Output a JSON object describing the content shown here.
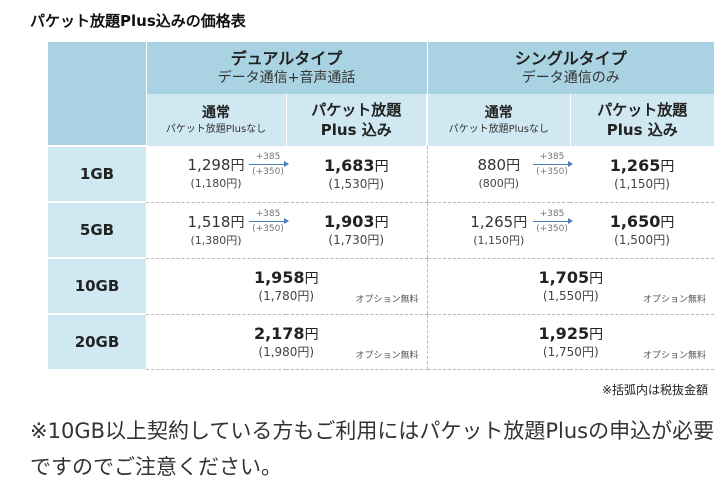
{
  "title": "パケット放題Plus込みの価格表",
  "plans": {
    "dual": {
      "name": "デュアルタイプ",
      "sub": "データ通信+音声通話"
    },
    "single": {
      "name": "シングルタイプ",
      "sub": "データ通信のみ"
    }
  },
  "subheads": {
    "normal_main": "通常",
    "normal_small": "パケット放題Plusなし",
    "plus_line1": "パケット放題",
    "plus_line2": "Plus 込み"
  },
  "yen": "円",
  "arrow": {
    "top": "+385",
    "bottom": "(+350)"
  },
  "option_free": "オプション無料",
  "rows": [
    {
      "label": "1GB",
      "dual": {
        "normal": "1,298",
        "normal_tax": "(1,180円)",
        "plus": "1,683",
        "plus_tax": "(1,530円)"
      },
      "single": {
        "normal": "880",
        "normal_tax": "(800円)",
        "plus": "1,265",
        "plus_tax": "(1,150円)"
      }
    },
    {
      "label": "5GB",
      "dual": {
        "normal": "1,518",
        "normal_tax": "(1,380円)",
        "plus": "1,903",
        "plus_tax": "(1,730円)"
      },
      "single": {
        "normal": "1,265",
        "normal_tax": "(1,150円)",
        "plus": "1,650",
        "plus_tax": "(1,500円)"
      }
    },
    {
      "label": "10GB",
      "dual": {
        "price": "1,958",
        "tax": "(1,780円)"
      },
      "single": {
        "price": "1,705",
        "tax": "(1,550円)"
      }
    },
    {
      "label": "20GB",
      "dual": {
        "price": "2,178",
        "tax": "(1,980円)"
      },
      "single": {
        "price": "1,925",
        "tax": "(1,750円)"
      }
    }
  ],
  "tax_note": "※括弧内は税抜金額",
  "footnote": "※10GB以上契約している方もご利用にはパケット放題Plusの申込が必要ですのでご注意ください。"
}
